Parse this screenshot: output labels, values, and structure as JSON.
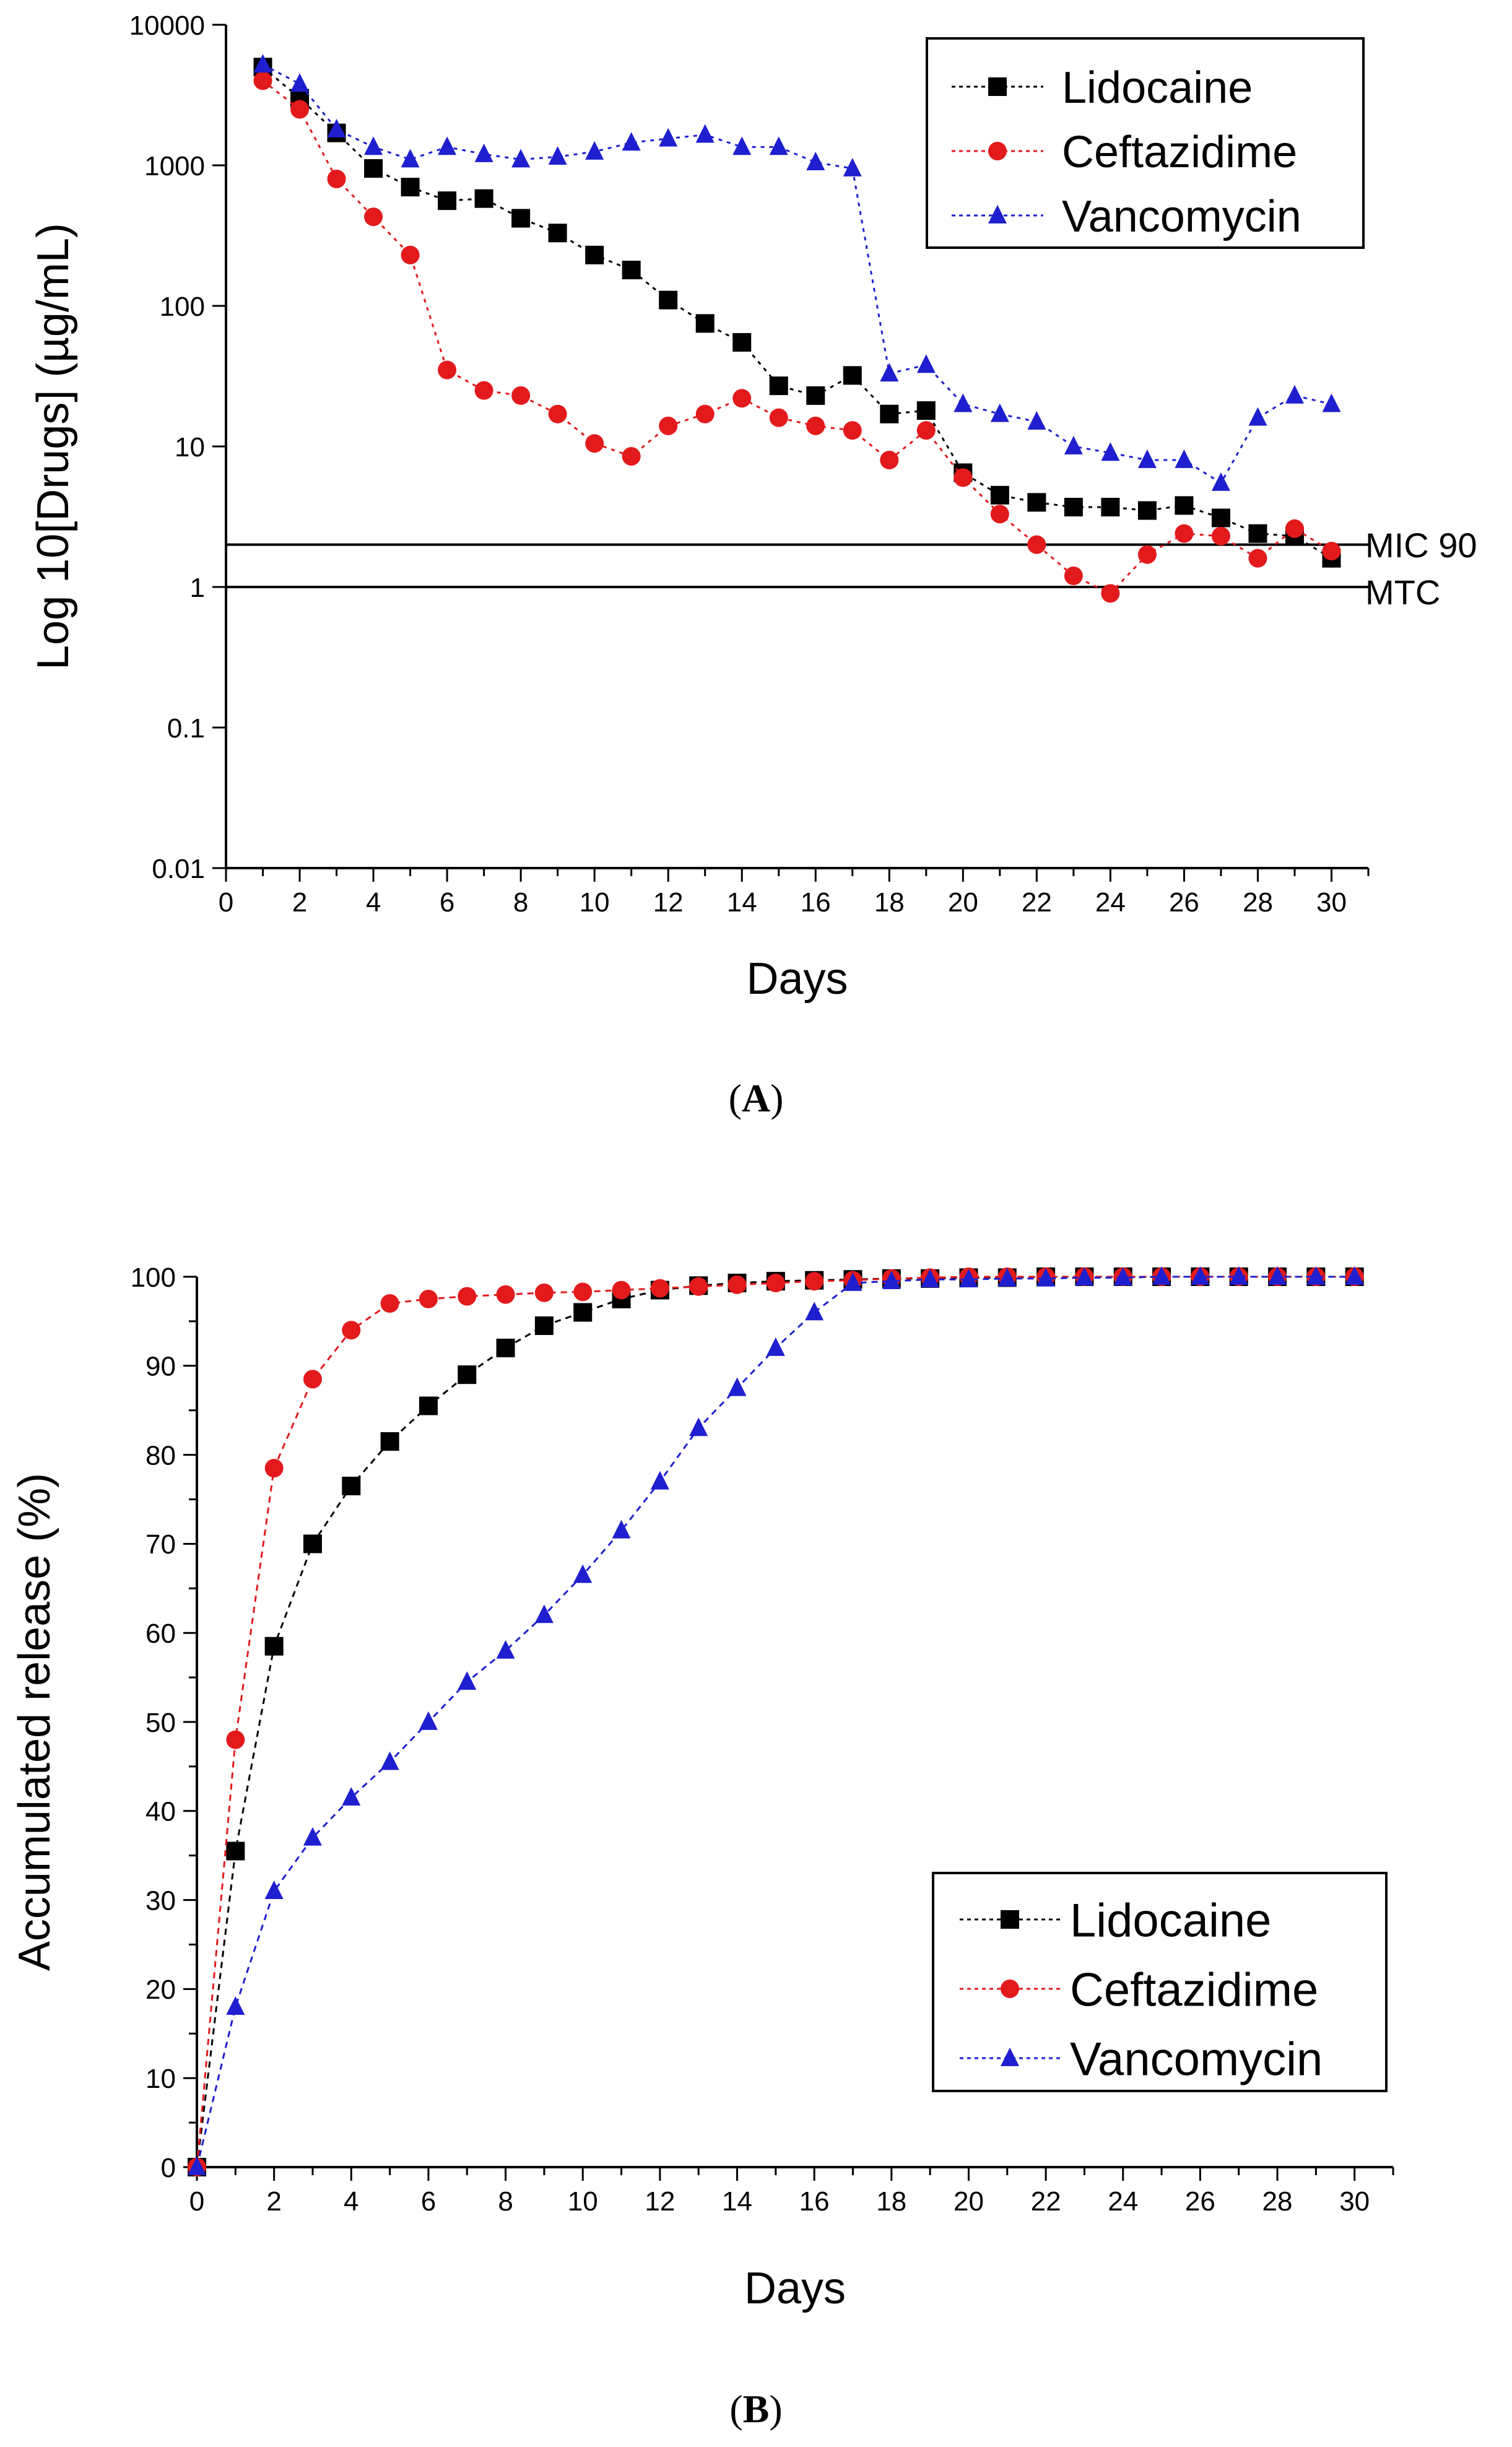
{
  "chart_data": [
    {
      "type": "line",
      "panel_label": "A",
      "title": "",
      "xlabel": "Days",
      "ylabel": "Log 10[Drugs] (µg/mL)",
      "yscale": "log",
      "xlim": [
        0,
        31
      ],
      "ylim": [
        0.01,
        10000
      ],
      "xticks": [
        0,
        2,
        4,
        6,
        8,
        10,
        12,
        14,
        16,
        18,
        20,
        22,
        24,
        26,
        28,
        30
      ],
      "yticks": [
        0.01,
        0.1,
        1,
        10,
        100,
        1000,
        10000
      ],
      "ytick_labels": [
        "0.01",
        "0.1",
        "1",
        "10",
        "100",
        "1000",
        "10000"
      ],
      "legend_position": "top-right",
      "reference_lines": [
        {
          "label": "MIC 90",
          "value": 2
        },
        {
          "label": "MTC",
          "value": 1
        }
      ],
      "series": [
        {
          "name": "Lidocaine",
          "marker": "square",
          "color": "#000000",
          "x": [
            1,
            2,
            3,
            4,
            5,
            6,
            7,
            8,
            9,
            10,
            11,
            12,
            13,
            14,
            15,
            16,
            17,
            18,
            19,
            20,
            21,
            22,
            23,
            24,
            25,
            26,
            27,
            28,
            29,
            30
          ],
          "values": [
            5000,
            3000,
            1700,
            950,
            700,
            560,
            580,
            420,
            330,
            230,
            180,
            110,
            75,
            55,
            27,
            23,
            32,
            17,
            18,
            6.5,
            4.5,
            4.0,
            3.7,
            3.7,
            3.5,
            3.8,
            3.1,
            2.4,
            2.3,
            1.6
          ]
        },
        {
          "name": "Ceftazidime",
          "marker": "circle",
          "color": "#e31a1c",
          "x": [
            1,
            2,
            3,
            4,
            5,
            6,
            7,
            8,
            9,
            10,
            11,
            12,
            13,
            14,
            15,
            16,
            17,
            18,
            19,
            20,
            21,
            22,
            23,
            24,
            25,
            26,
            27,
            28,
            29,
            30
          ],
          "values": [
            4000,
            2500,
            800,
            430,
            230,
            35,
            25,
            23,
            17,
            10.5,
            8.5,
            14,
            17,
            22,
            16,
            14,
            13,
            8,
            13,
            6,
            3.3,
            2,
            1.2,
            0.9,
            1.7,
            2.4,
            2.3,
            1.6,
            2.6,
            1.8
          ]
        },
        {
          "name": "Vancomycin",
          "marker": "triangle",
          "color": "#1f1fcf",
          "x": [
            1,
            2,
            3,
            4,
            5,
            6,
            7,
            8,
            9,
            10,
            11,
            12,
            13,
            14,
            15,
            16,
            17,
            18,
            19,
            20,
            21,
            22,
            23,
            24,
            25,
            26,
            27,
            28,
            29,
            30
          ],
          "values": [
            5200,
            3800,
            1800,
            1350,
            1100,
            1350,
            1200,
            1100,
            1150,
            1250,
            1450,
            1550,
            1650,
            1350,
            1350,
            1050,
            950,
            33,
            38,
            20,
            17,
            15,
            10,
            9,
            8,
            8,
            5.5,
            16,
            23,
            20
          ]
        }
      ]
    },
    {
      "type": "line",
      "panel_label": "B",
      "title": "",
      "xlabel": "Days",
      "ylabel": "Accumulated release (%)",
      "yscale": "linear",
      "xlim": [
        0,
        31
      ],
      "ylim": [
        0,
        100
      ],
      "xticks": [
        0,
        2,
        4,
        6,
        8,
        10,
        12,
        14,
        16,
        18,
        20,
        22,
        24,
        26,
        28,
        30
      ],
      "yticks": [
        0,
        10,
        20,
        30,
        40,
        50,
        60,
        70,
        80,
        90,
        100
      ],
      "ytick_labels": [
        "0",
        "10",
        "20",
        "30",
        "40",
        "50",
        "60",
        "70",
        "80",
        "90",
        "100"
      ],
      "legend_position": "bottom-right",
      "series": [
        {
          "name": "Lidocaine",
          "marker": "square",
          "color": "#000000",
          "x": [
            0,
            1,
            2,
            3,
            4,
            5,
            6,
            7,
            8,
            9,
            10,
            11,
            12,
            13,
            14,
            15,
            16,
            17,
            18,
            19,
            20,
            21,
            22,
            23,
            24,
            25,
            26,
            27,
            28,
            29,
            30
          ],
          "values": [
            0,
            35.5,
            58.5,
            70,
            76.5,
            81.5,
            85.5,
            89,
            92,
            94.5,
            96,
            97.5,
            98.5,
            99,
            99.3,
            99.5,
            99.6,
            99.7,
            99.8,
            99.8,
            99.9,
            99.9,
            100,
            100,
            100,
            100,
            100,
            100,
            100,
            100,
            100
          ]
        },
        {
          "name": "Ceftazidime",
          "marker": "circle",
          "color": "#e31a1c",
          "x": [
            0,
            1,
            2,
            3,
            4,
            5,
            6,
            7,
            8,
            9,
            10,
            11,
            12,
            13,
            14,
            15,
            16,
            17,
            18,
            19,
            20,
            21,
            22,
            23,
            24,
            25,
            26,
            27,
            28,
            29,
            30
          ],
          "values": [
            0,
            48,
            78.5,
            88.5,
            94,
            97,
            97.5,
            97.8,
            98,
            98.2,
            98.3,
            98.5,
            98.7,
            98.9,
            99.1,
            99.3,
            99.5,
            99.6,
            99.8,
            99.9,
            100,
            100,
            100,
            100,
            100,
            100,
            100,
            100,
            100,
            100,
            100
          ]
        },
        {
          "name": "Vancomycin",
          "marker": "triangle",
          "color": "#1f1fcf",
          "x": [
            0,
            1,
            2,
            3,
            4,
            5,
            6,
            7,
            8,
            9,
            10,
            11,
            12,
            13,
            14,
            15,
            16,
            17,
            18,
            19,
            20,
            21,
            22,
            23,
            24,
            25,
            26,
            27,
            28,
            29,
            30
          ],
          "values": [
            0,
            18,
            31,
            37,
            41.5,
            45.5,
            50,
            54.5,
            58,
            62,
            66.5,
            71.5,
            77,
            83,
            87.5,
            92,
            96,
            99.3,
            99.5,
            99.7,
            99.7,
            99.8,
            99.8,
            99.9,
            99.9,
            100,
            100,
            100,
            100,
            100,
            100
          ]
        }
      ]
    }
  ]
}
